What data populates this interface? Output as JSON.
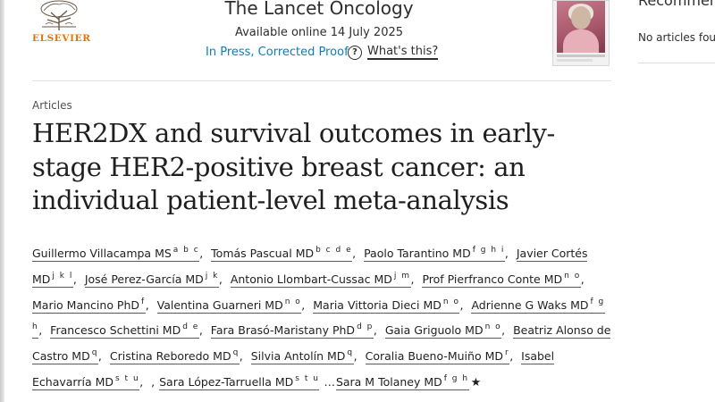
{
  "header": {
    "publisher_logo_text": "ELSEVIER",
    "journal_title": "The Lancet Oncology",
    "available_online": "Available online 14 July 2025",
    "status_link": "In Press, Corrected Proof",
    "whats_this": "What's this?",
    "whats_this_icon": "?"
  },
  "sidebar": {
    "recommended_heading": "Recommen",
    "no_articles": "No articles fou"
  },
  "article": {
    "section": "Articles",
    "title": "HER2DX and survival outcomes in early-stage HER2-positive breast cancer: an individual patient-level meta-analysis",
    "authors": [
      {
        "name": "Guillermo Villacampa MS",
        "affil": "a b c"
      },
      {
        "name": "Tomás Pascual MD",
        "affil": "b c d e"
      },
      {
        "name": "Paolo Tarantino MD",
        "affil": "f g h i"
      },
      {
        "name": "Javier Cortés MD",
        "affil": "j k l"
      },
      {
        "name": "José Perez-García MD",
        "affil": "j k"
      },
      {
        "name": "Antonio Llombart-Cussac MD",
        "affil": "j m"
      },
      {
        "name": "Prof Pierfranco Conte MD",
        "affil": "n o"
      },
      {
        "name": "Mario Mancino PhD",
        "affil": "f"
      },
      {
        "name": "Valentina Guarneri MD",
        "affil": "n o"
      },
      {
        "name": "Maria Vittoria Dieci MD",
        "affil": "n o"
      },
      {
        "name": "Adrienne G Waks MD",
        "affil": "f g h"
      },
      {
        "name": "Francesco Schettini MD",
        "affil": "d e"
      },
      {
        "name": "Fara Brasó-Maristany PhD",
        "affil": "d p"
      },
      {
        "name": "Gaia Griguolo MD",
        "affil": "n o"
      },
      {
        "name": "Beatriz Alonso de Castro MD",
        "affil": "q"
      },
      {
        "name": "Cristina Reboredo MD",
        "affil": "q"
      },
      {
        "name": "Silvia Antolín MD",
        "affil": "q"
      },
      {
        "name": "Coralia Bueno-Muiño MD",
        "affil": "r"
      },
      {
        "name": "Isabel Echavarría MD",
        "affil": "s t u"
      },
      {
        "name": "Sara López-Tarruella MD",
        "affil": "s t u"
      },
      {
        "name": "Sara M Tolaney MD",
        "affil": "f g h"
      }
    ],
    "ellipsis": "…",
    "corresponding_mark": "★"
  },
  "colors": {
    "link": "#0c7dbb",
    "brand_orange": "#e87200",
    "text": "#1f1f1f"
  }
}
